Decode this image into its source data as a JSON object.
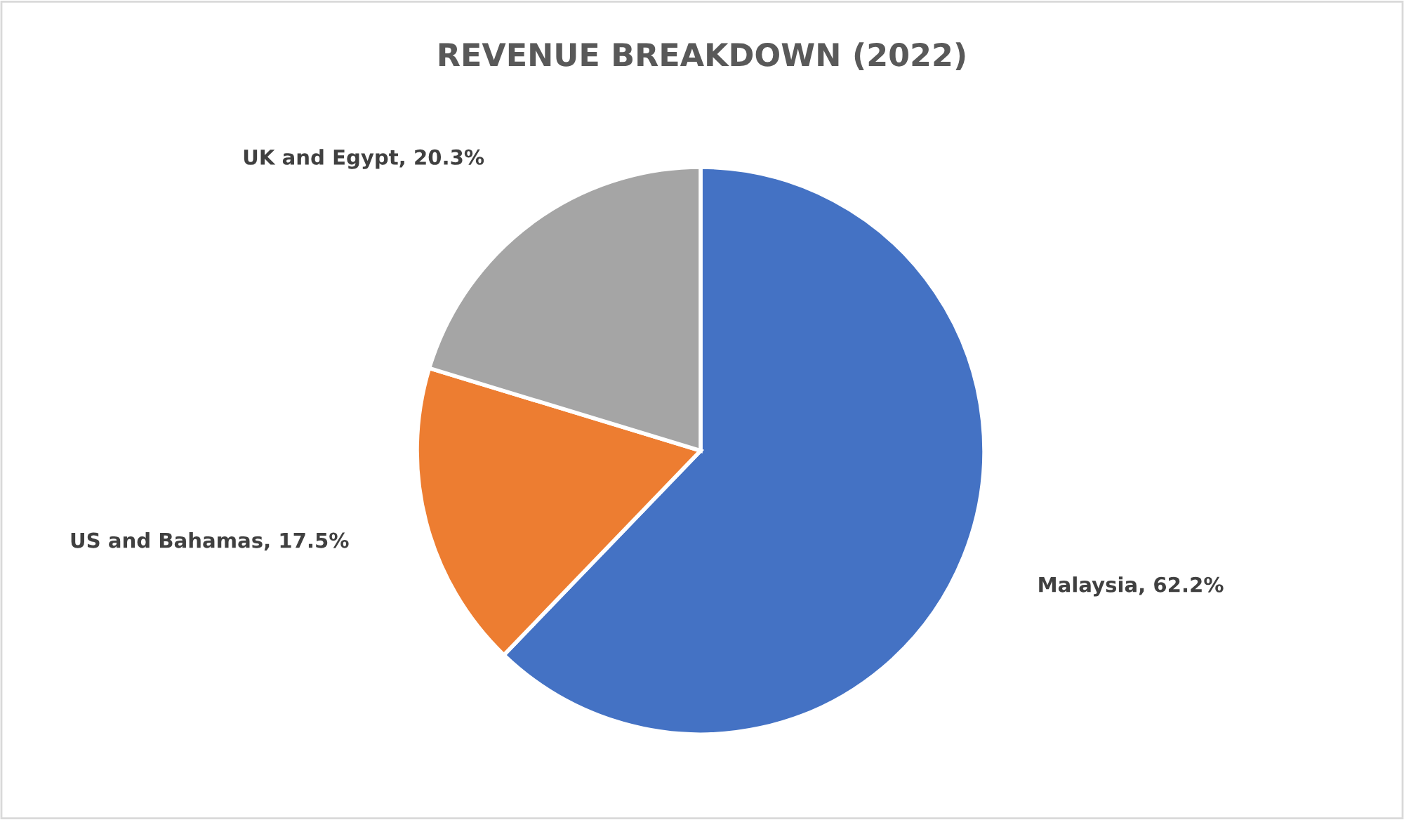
{
  "chart_data": {
    "type": "pie",
    "title": "REVENUE BREAKDOWN (2022)",
    "categories": [
      "Malaysia",
      "US and Bahamas",
      "UK and Egypt"
    ],
    "values": [
      62.2,
      17.5,
      20.3
    ],
    "value_labels": [
      "62.2%",
      "17.5%",
      "20.3%"
    ],
    "colors": [
      "#4472c4",
      "#ed7d31",
      "#a5a5a5"
    ],
    "legend": false
  }
}
